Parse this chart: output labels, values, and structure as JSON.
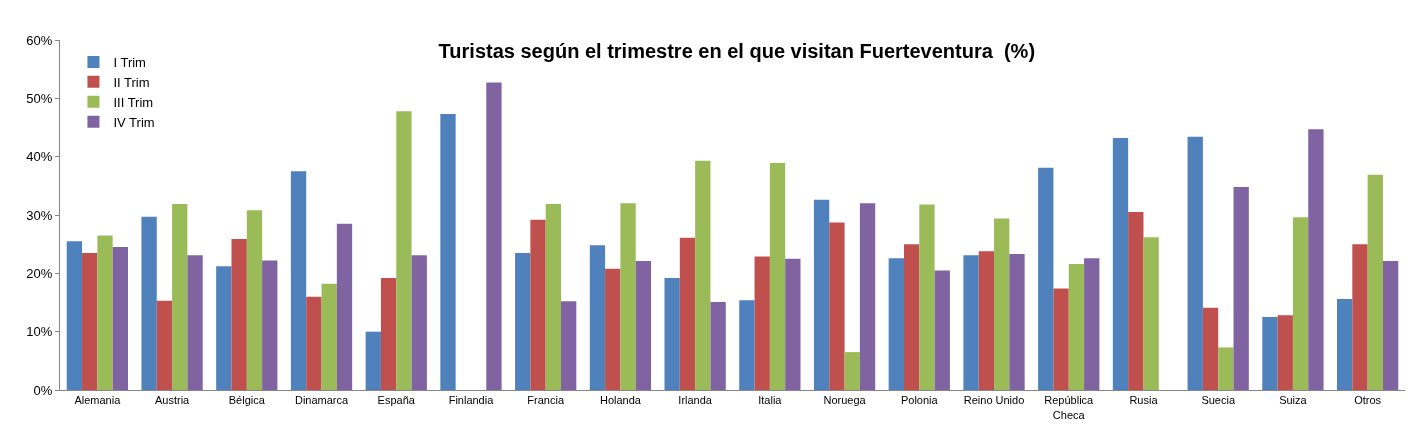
{
  "chart_data": {
    "type": "bar",
    "title": "Turistas según el trimestre en el que visitan Fuerteventura  (%)",
    "categories": [
      "Alemania",
      "Austria",
      "Bélgica",
      "Dinamarca",
      "España",
      "Finlandia",
      "Francia",
      "Holanda",
      "Irlanda",
      "Italia",
      "Noruega",
      "Polonia",
      "Reino Unido",
      "República Checa",
      "Rusia",
      "Suecia",
      "Suiza",
      "Otros"
    ],
    "series": [
      {
        "name": "I Trim",
        "color": "#4f81bd",
        "values": [
          25.5,
          29.7,
          21.2,
          37.5,
          10.0,
          47.3,
          23.5,
          24.8,
          19.2,
          15.4,
          32.6,
          22.6,
          23.1,
          38.1,
          43.2,
          43.4,
          12.5,
          15.6
        ]
      },
      {
        "name": "II Trim",
        "color": "#c0504d",
        "values": [
          23.5,
          15.3,
          25.9,
          16.0,
          19.2,
          0,
          29.2,
          20.8,
          26.1,
          22.9,
          28.7,
          25.0,
          23.8,
          17.4,
          30.5,
          14.1,
          12.8,
          25.0
        ]
      },
      {
        "name": "III Trim",
        "color": "#9bbb59",
        "values": [
          26.5,
          31.9,
          30.8,
          18.2,
          47.8,
          0,
          31.9,
          32.0,
          39.3,
          38.9,
          6.5,
          31.8,
          29.4,
          21.6,
          26.2,
          7.3,
          29.6,
          36.9
        ]
      },
      {
        "name": "IV Trim",
        "color": "#8064a2",
        "values": [
          24.5,
          23.1,
          22.2,
          28.5,
          23.1,
          52.7,
          15.2,
          22.1,
          15.1,
          22.5,
          32.0,
          20.5,
          23.3,
          22.6,
          0,
          34.8,
          44.7,
          22.1
        ]
      }
    ],
    "ylim": [
      0,
      60
    ],
    "yticks": [
      {
        "value": 0,
        "label": "0%"
      },
      {
        "value": 10,
        "label": "10%"
      },
      {
        "value": 20,
        "label": "20%"
      },
      {
        "value": 30,
        "label": "30%"
      },
      {
        "value": 40,
        "label": "40%"
      },
      {
        "value": 50,
        "label": "50%"
      },
      {
        "value": 60,
        "label": "60%"
      }
    ],
    "legend": "top left"
  }
}
